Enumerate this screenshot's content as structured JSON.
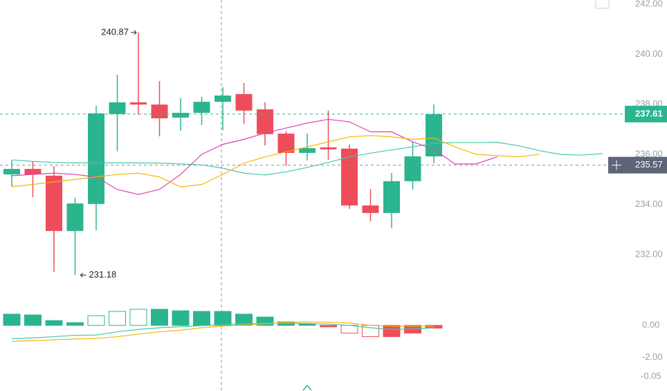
{
  "chart_data": [
    {
      "type": "candlestick",
      "categories": [
        null,
        null,
        null,
        null,
        null,
        null,
        null,
        null,
        null,
        null,
        null,
        null,
        null,
        null,
        null,
        null,
        null,
        null,
        null,
        null,
        null,
        null,
        null,
        null,
        null,
        null,
        null,
        null,
        null
      ],
      "open": [
        235.2,
        235.42,
        235.15,
        232.94,
        234.02,
        237.61,
        238.08,
        237.99,
        237.47,
        237.66,
        238.1,
        238.41,
        237.8,
        236.83,
        236.06,
        236.28,
        236.23,
        233.96,
        233.66,
        234.93,
        235.92,
        null,
        null,
        null,
        null,
        null,
        null,
        null,
        null
      ],
      "high": [
        235.76,
        235.73,
        235.53,
        234.27,
        237.94,
        239.18,
        240.87,
        238.93,
        238.24,
        238.3,
        238.69,
        238.85,
        238.08,
        236.92,
        236.83,
        237.75,
        236.39,
        234.62,
        235.26,
        236.5,
        237.99,
        null,
        null,
        null,
        null,
        null,
        null,
        null,
        null
      ],
      "low": [
        234.71,
        234.29,
        231.31,
        231.18,
        232.97,
        236.12,
        237.58,
        236.72,
        236.94,
        237.17,
        236.97,
        237.22,
        236.36,
        235.54,
        235.76,
        235.78,
        233.82,
        233.33,
        233.05,
        234.6,
        235.65,
        null,
        null,
        null,
        null,
        null,
        null,
        null,
        null
      ],
      "close": [
        235.42,
        235.2,
        232.94,
        234.04,
        237.64,
        238.08,
        237.99,
        237.44,
        237.66,
        238.1,
        238.35,
        237.75,
        236.81,
        236.06,
        236.25,
        236.2,
        233.96,
        233.66,
        234.93,
        235.92,
        237.61,
        null,
        null,
        null,
        null,
        null,
        null,
        null,
        null
      ],
      "up_color": "#2bb58f",
      "down_color": "#ef4c5a",
      "series": [
        {
          "color": "#3fc9b0",
          "values": [
            235.78,
            235.72,
            235.68,
            235.66,
            235.66,
            235.66,
            235.66,
            235.65,
            235.62,
            235.58,
            235.45,
            235.25,
            235.18,
            235.3,
            235.48,
            235.68,
            235.9,
            236.05,
            236.18,
            236.3,
            236.45,
            236.47,
            236.47,
            236.48,
            236.35,
            236.15,
            236.0,
            235.97,
            236.03
          ]
        },
        {
          "color": "#e040b0",
          "values": [
            235.15,
            235.2,
            235.25,
            235.2,
            235.1,
            234.6,
            234.4,
            234.6,
            235.2,
            236.0,
            236.4,
            236.6,
            236.85,
            237.05,
            237.25,
            237.4,
            237.3,
            236.9,
            236.9,
            236.5,
            236.2,
            235.62,
            235.62,
            235.9,
            null,
            null,
            null,
            null,
            null
          ]
        },
        {
          "color": "#f5b700",
          "values": [
            234.71,
            234.8,
            234.9,
            235.0,
            235.1,
            235.2,
            235.25,
            235.1,
            234.7,
            234.8,
            235.2,
            235.65,
            235.9,
            236.1,
            236.3,
            236.5,
            236.7,
            236.75,
            236.7,
            236.6,
            236.65,
            236.3,
            236.0,
            235.95,
            235.9,
            236.0,
            null,
            null,
            null
          ]
        }
      ],
      "ylim": [
        231.0,
        242.0
      ],
      "yticks": [
        {
          "value": 232,
          "label": "232.00"
        },
        {
          "value": 234,
          "label": "234.00"
        },
        {
          "value": 236,
          "label": "236.00"
        },
        {
          "value": 238,
          "label": "238.00"
        },
        {
          "value": 240,
          "label": "240.00"
        },
        {
          "value": 242,
          "label": "242.00"
        }
      ],
      "high_label": "240.87",
      "low_label": "231.18",
      "last_price": 237.61,
      "last_price_color": "#2bb58f",
      "cursor_price": 235.57,
      "cursor_color": "#5d6678"
    },
    {
      "type": "macd",
      "categories": [
        null,
        null,
        null,
        null,
        null,
        null,
        null,
        null,
        null,
        null,
        null,
        null,
        null,
        null,
        null,
        null,
        null,
        null,
        null,
        null,
        null
      ],
      "values": [
        0.7,
        0.65,
        0.3,
        0.17,
        0.6,
        0.87,
        1.0,
        1.0,
        0.91,
        0.87,
        0.87,
        0.7,
        0.52,
        0.22,
        0.09,
        -0.09,
        -0.48,
        -0.7,
        -0.7,
        -0.48,
        -0.17
      ],
      "up_color": "#2bb58f",
      "down_color": "#ef4c5a",
      "series": [
        {
          "color": "#3fc9b0",
          "values": [
            -0.83,
            -0.78,
            -0.7,
            -0.62,
            -0.6,
            -0.4,
            -0.25,
            -0.15,
            -0.08,
            -0.02,
            0.04,
            0.1,
            0.13,
            0.13,
            0.12,
            0.08,
            0.0,
            -0.15,
            -0.25,
            -0.22,
            -0.15
          ]
        },
        {
          "color": "#f5b700",
          "values": [
            -1.0,
            -0.95,
            -0.9,
            -0.85,
            -0.82,
            -0.7,
            -0.55,
            -0.4,
            -0.3,
            -0.15,
            -0.04,
            0.02,
            0.1,
            0.18,
            0.22,
            0.2,
            0.15,
            0.0,
            -0.05,
            -0.05,
            -0.05
          ]
        }
      ],
      "ylim": [
        -4,
        1.3
      ],
      "yticks": [
        {
          "value": 0,
          "label": "0.00"
        },
        {
          "value": -2,
          "label": "-2.00"
        }
      ],
      "bottom_label": "-0.05"
    }
  ]
}
